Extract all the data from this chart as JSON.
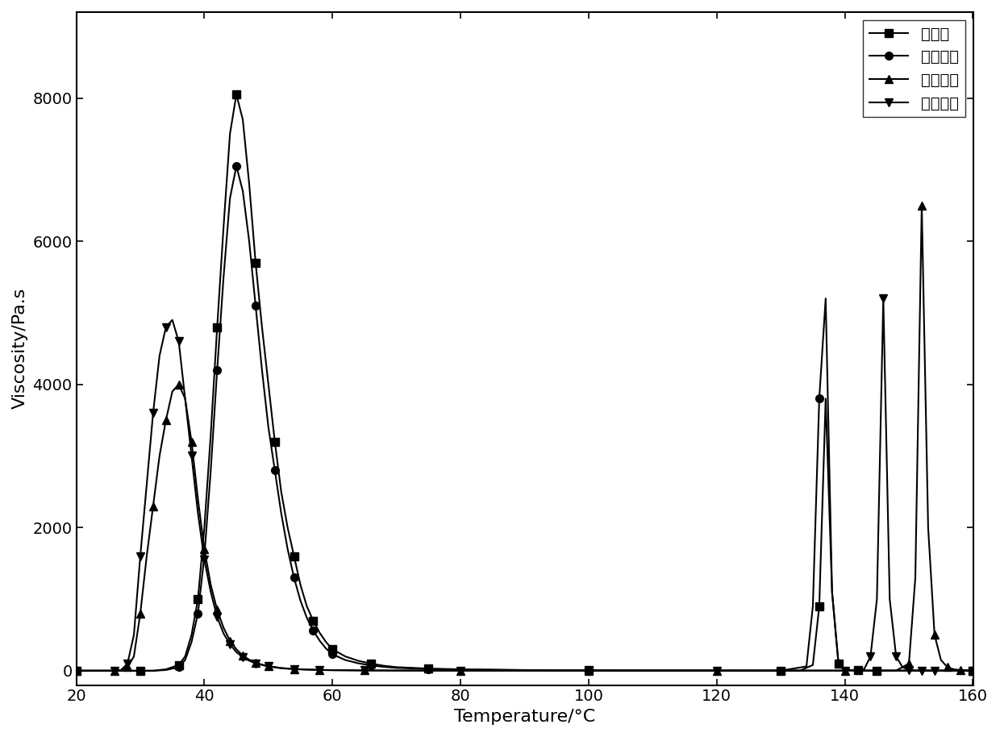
{
  "title": "",
  "xlabel": "Temperature/°C",
  "ylabel": "Viscosity/Pa.s",
  "xlim": [
    20,
    160
  ],
  "ylim": [
    -200,
    9200
  ],
  "yticks": [
    0,
    2000,
    4000,
    6000,
    8000
  ],
  "xticks": [
    20,
    40,
    60,
    80,
    100,
    120,
    140,
    160
  ],
  "series": [
    {
      "label": "对比例",
      "marker": "s",
      "color": "#000000",
      "x": [
        20,
        25,
        28,
        30,
        32,
        34,
        36,
        37,
        38,
        39,
        40,
        41,
        42,
        43,
        44,
        45,
        46,
        47,
        48,
        49,
        50,
        51,
        52,
        53,
        54,
        55,
        56,
        57,
        58,
        59,
        60,
        62,
        64,
        66,
        68,
        70,
        75,
        80,
        90,
        100,
        110,
        120,
        130,
        133,
        135,
        136,
        137,
        138,
        139,
        140,
        141,
        142,
        143,
        144,
        145,
        150,
        155,
        160
      ],
      "y": [
        0,
        0,
        0,
        0,
        0,
        20,
        80,
        200,
        500,
        1000,
        2000,
        3300,
        4800,
        6200,
        7500,
        8050,
        7700,
        6800,
        5700,
        4800,
        4000,
        3200,
        2500,
        2000,
        1600,
        1200,
        900,
        700,
        530,
        400,
        300,
        200,
        140,
        100,
        70,
        50,
        30,
        20,
        10,
        6,
        4,
        3,
        2,
        2,
        80,
        900,
        3800,
        1100,
        100,
        20,
        8,
        4,
        2,
        2,
        2,
        2,
        2,
        2
      ]
    },
    {
      "label": "实施例一",
      "marker": "o",
      "color": "#000000",
      "x": [
        20,
        25,
        28,
        30,
        32,
        34,
        36,
        37,
        38,
        39,
        40,
        41,
        42,
        43,
        44,
        45,
        46,
        47,
        48,
        49,
        50,
        51,
        52,
        53,
        54,
        55,
        56,
        57,
        58,
        59,
        60,
        62,
        64,
        66,
        68,
        70,
        75,
        80,
        90,
        100,
        110,
        120,
        130,
        134,
        135,
        136,
        137,
        138,
        139,
        140,
        141,
        142,
        143,
        144,
        145,
        150,
        155,
        160
      ],
      "y": [
        0,
        0,
        0,
        0,
        0,
        10,
        50,
        150,
        400,
        800,
        1600,
        2800,
        4200,
        5500,
        6600,
        7050,
        6700,
        6000,
        5100,
        4200,
        3400,
        2800,
        2200,
        1700,
        1300,
        980,
        740,
        560,
        420,
        310,
        230,
        150,
        105,
        75,
        54,
        40,
        24,
        16,
        8,
        5,
        3,
        2,
        2,
        60,
        900,
        3800,
        5200,
        1100,
        100,
        20,
        8,
        4,
        2,
        2,
        2,
        2,
        2,
        2
      ]
    },
    {
      "label": "实施例二",
      "marker": "^",
      "color": "#000000",
      "x": [
        20,
        24,
        26,
        27,
        28,
        29,
        30,
        31,
        32,
        33,
        34,
        35,
        36,
        37,
        38,
        39,
        40,
        41,
        42,
        43,
        44,
        45,
        46,
        47,
        48,
        49,
        50,
        52,
        54,
        56,
        58,
        60,
        65,
        70,
        80,
        90,
        100,
        110,
        120,
        130,
        140,
        148,
        150,
        151,
        152,
        153,
        154,
        155,
        156,
        157,
        158,
        159,
        160
      ],
      "y": [
        0,
        0,
        0,
        10,
        50,
        200,
        800,
        1600,
        2300,
        3000,
        3500,
        3900,
        4000,
        3800,
        3200,
        2400,
        1700,
        1200,
        850,
        600,
        420,
        300,
        210,
        155,
        115,
        85,
        65,
        38,
        25,
        17,
        12,
        9,
        5,
        3,
        2,
        2,
        2,
        2,
        2,
        2,
        2,
        2,
        100,
        1300,
        6500,
        2000,
        500,
        150,
        50,
        20,
        10,
        5,
        3
      ]
    },
    {
      "label": "实施例三",
      "marker": "v",
      "color": "#000000",
      "x": [
        20,
        24,
        26,
        27,
        28,
        29,
        30,
        31,
        32,
        33,
        34,
        35,
        36,
        37,
        38,
        39,
        40,
        41,
        42,
        43,
        44,
        45,
        46,
        47,
        48,
        49,
        50,
        52,
        54,
        56,
        58,
        60,
        65,
        70,
        80,
        90,
        100,
        110,
        120,
        130,
        140,
        143,
        144,
        145,
        146,
        147,
        148,
        149,
        150,
        151,
        152,
        153,
        154,
        155,
        160
      ],
      "y": [
        0,
        0,
        0,
        10,
        100,
        500,
        1600,
        2600,
        3600,
        4400,
        4800,
        4900,
        4600,
        3800,
        3000,
        2200,
        1550,
        1100,
        750,
        520,
        370,
        260,
        190,
        140,
        105,
        80,
        60,
        35,
        22,
        15,
        10,
        7,
        4,
        3,
        2,
        2,
        2,
        2,
        2,
        2,
        2,
        20,
        200,
        1000,
        5200,
        1000,
        200,
        50,
        10,
        5,
        3,
        3,
        3,
        3,
        3
      ]
    }
  ],
  "legend_loc": "upper right",
  "background_color": "#ffffff",
  "linewidth": 1.5,
  "markersize": 7,
  "markevery": [
    3,
    3,
    2,
    2
  ]
}
